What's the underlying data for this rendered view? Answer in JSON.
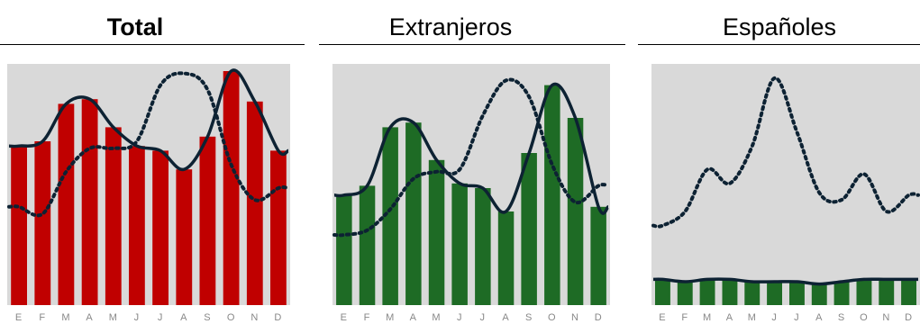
{
  "panels": [
    {
      "title": "Total",
      "title_bold": true,
      "bar_color": "#c00000",
      "chart_data": {
        "type": "bar",
        "categories": [
          "E",
          "F",
          "M",
          "A",
          "M",
          "J",
          "J",
          "A",
          "S",
          "O",
          "N",
          "D"
        ],
        "ylim": [
          0,
          100
        ],
        "series": [
          {
            "kind": "bar",
            "values": [
              68,
              70,
              86,
              88,
              76,
              68,
              66,
              58,
              72,
              100,
              87,
              66
            ]
          },
          {
            "kind": "line-solid",
            "values": [
              68,
              70,
              86,
              88,
              76,
              68,
              66,
              58,
              72,
              100,
              87,
              66
            ]
          },
          {
            "kind": "line-dotted",
            "values": [
              42,
              39,
              57,
              67,
              67,
              70,
              94,
              99,
              92,
              60,
              45,
              50
            ]
          }
        ],
        "grid": false,
        "legend": "none"
      }
    },
    {
      "title": "Extranjeros",
      "title_bold": false,
      "bar_color": "#1e6b25",
      "chart_data": {
        "type": "bar",
        "categories": [
          "E",
          "F",
          "M",
          "A",
          "M",
          "J",
          "J",
          "A",
          "S",
          "O",
          "N",
          "D"
        ],
        "ylim": [
          0,
          100
        ],
        "series": [
          {
            "kind": "bar",
            "values": [
              47,
              51,
              76,
              78,
              62,
              52,
              50,
              40,
              65,
              94,
              80,
              42
            ]
          },
          {
            "kind": "line-solid",
            "values": [
              47,
              51,
              76,
              78,
              62,
              52,
              50,
              40,
              65,
              94,
              80,
              42
            ]
          },
          {
            "kind": "line-dotted",
            "values": [
              30,
              32,
              41,
              54,
              57,
              58,
              81,
              96,
              89,
              60,
              44,
              51
            ]
          }
        ],
        "grid": false,
        "legend": "none"
      }
    },
    {
      "title": "Españoles",
      "title_bold": false,
      "bar_color": "#1e6b25",
      "chart_data": {
        "type": "bar",
        "categories": [
          "E",
          "F",
          "M",
          "A",
          "M",
          "J",
          "J",
          "A",
          "S",
          "O",
          "N",
          "D"
        ],
        "ylim": [
          0,
          100
        ],
        "series": [
          {
            "kind": "bar",
            "values": [
              11,
              10,
              11,
              11,
              10,
              10,
              10,
              9,
              10,
              11,
              11,
              11
            ]
          },
          {
            "kind": "line-solid",
            "values": [
              11,
              10,
              11,
              11,
              10,
              10,
              10,
              9,
              10,
              11,
              11,
              11
            ]
          },
          {
            "kind": "line-dotted",
            "values": [
              34,
              40,
              58,
              52,
              68,
              97,
              74,
              48,
              45,
              56,
              40,
              47
            ]
          }
        ],
        "grid": false,
        "legend": "none"
      }
    }
  ]
}
